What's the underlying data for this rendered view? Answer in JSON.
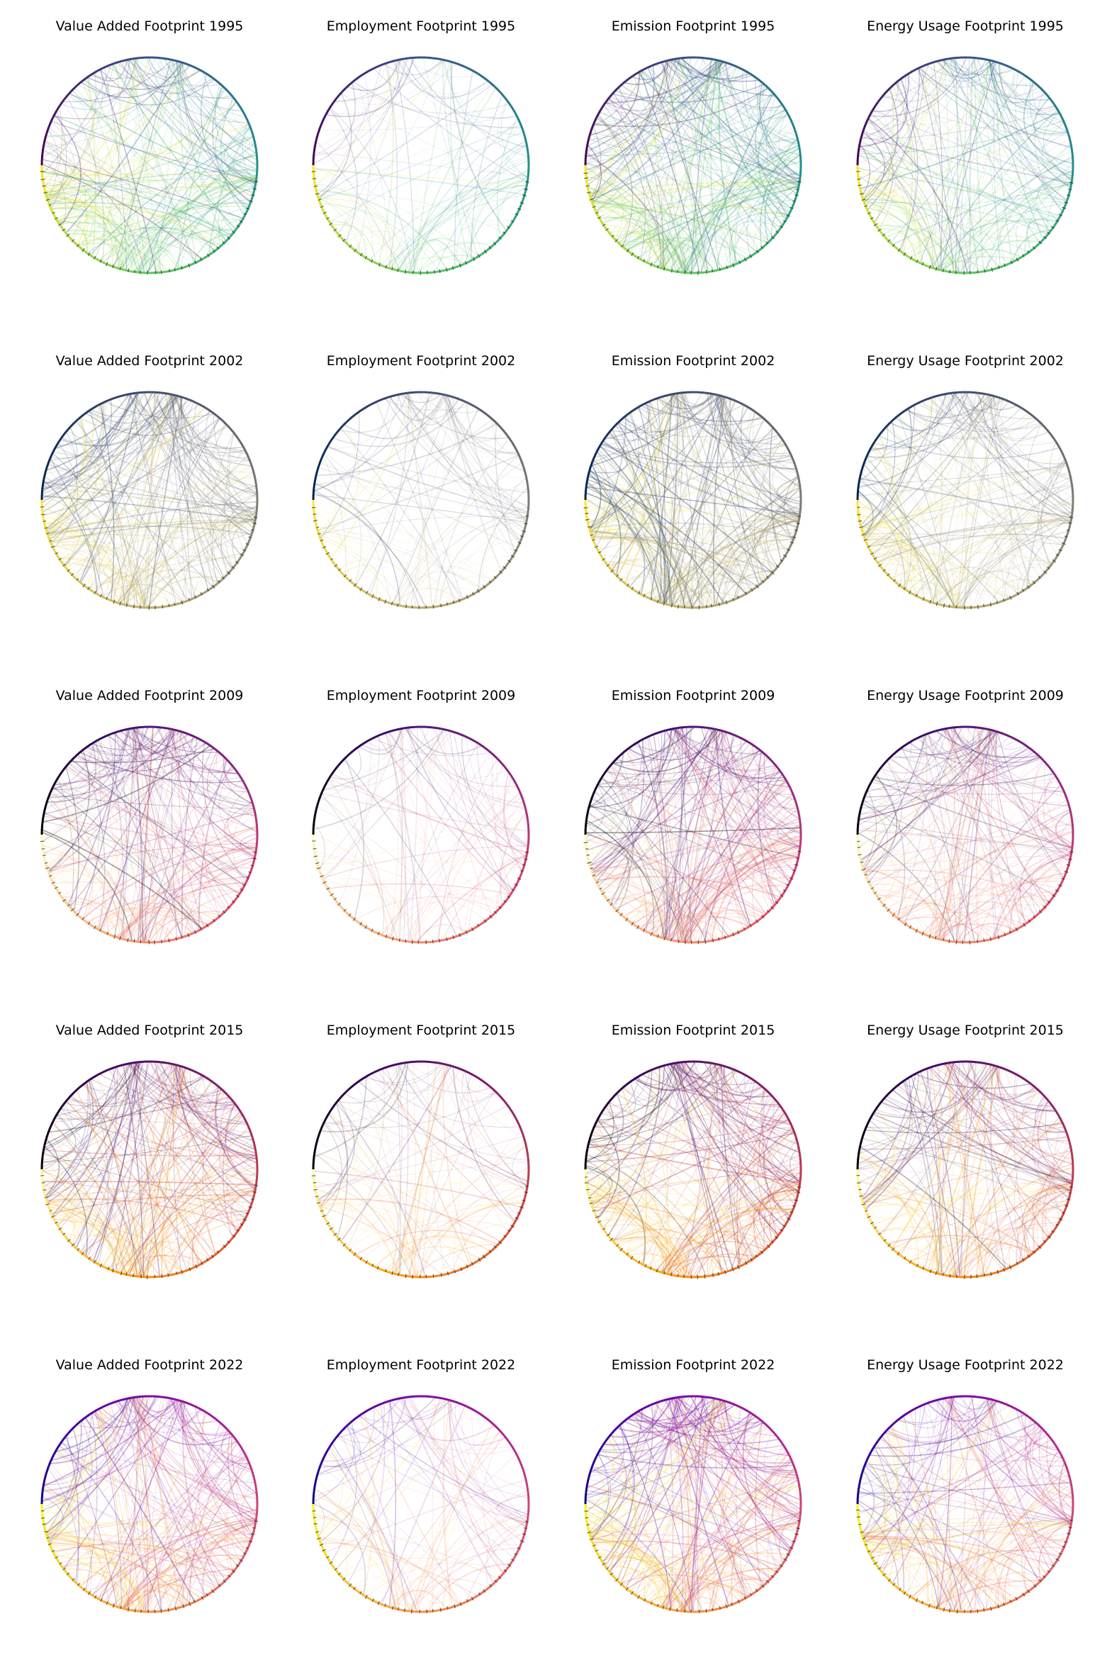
{
  "figure": {
    "rows": [
      {
        "year": "1995",
        "colormap": "viridis",
        "palette": [
          "#440154",
          "#3b528b",
          "#21918c",
          "#5ec962",
          "#fde725"
        ],
        "panels": [
          {
            "title": "Value Added Footprint 1995",
            "density": 0.9
          },
          {
            "title": "Employment Footprint 1995",
            "density": 0.45
          },
          {
            "title": "Emission Footprint 1995",
            "density": 1.0
          },
          {
            "title": "Energy Usage Footprint 1995",
            "density": 0.8
          }
        ]
      },
      {
        "year": "2002",
        "colormap": "cividis",
        "palette": [
          "#00224e",
          "#35456c",
          "#666970",
          "#948e77",
          "#c8b866",
          "#fee838"
        ],
        "panels": [
          {
            "title": "Value Added Footprint 2002",
            "density": 0.9
          },
          {
            "title": "Employment Footprint 2002",
            "density": 0.45
          },
          {
            "title": "Emission Footprint 2002",
            "density": 1.0
          },
          {
            "title": "Energy Usage Footprint 2002",
            "density": 0.8
          }
        ]
      },
      {
        "year": "2009",
        "colormap": "magma",
        "palette": [
          "#000004",
          "#3b0f70",
          "#8c2981",
          "#de4968",
          "#fe9f6d",
          "#fcfdbf"
        ],
        "panels": [
          {
            "title": "Value Added Footprint 2009",
            "density": 0.9
          },
          {
            "title": "Employment Footprint 2009",
            "density": 0.45
          },
          {
            "title": "Emission Footprint 2009",
            "density": 1.0
          },
          {
            "title": "Energy Usage Footprint 2009",
            "density": 0.8
          }
        ]
      },
      {
        "year": "2015",
        "colormap": "inferno",
        "palette": [
          "#000004",
          "#420a68",
          "#932667",
          "#dd513a",
          "#fca50a",
          "#fcffa4"
        ],
        "panels": [
          {
            "title": "Value Added Footprint 2015",
            "density": 0.9
          },
          {
            "title": "Employment Footprint 2015",
            "density": 0.45
          },
          {
            "title": "Emission Footprint 2015",
            "density": 1.0
          },
          {
            "title": "Energy Usage Footprint 2015",
            "density": 0.8
          }
        ]
      },
      {
        "year": "2022",
        "colormap": "plasma",
        "palette": [
          "#0d0887",
          "#6a00a8",
          "#b12a90",
          "#e16462",
          "#fca636",
          "#f0f921"
        ],
        "panels": [
          {
            "title": "Value Added Footprint 2022",
            "density": 0.9
          },
          {
            "title": "Employment Footprint 2022",
            "density": 0.45
          },
          {
            "title": "Emission Footprint 2022",
            "density": 1.0
          },
          {
            "title": "Energy Usage Footprint 2022",
            "density": 0.8
          }
        ]
      }
    ]
  }
}
